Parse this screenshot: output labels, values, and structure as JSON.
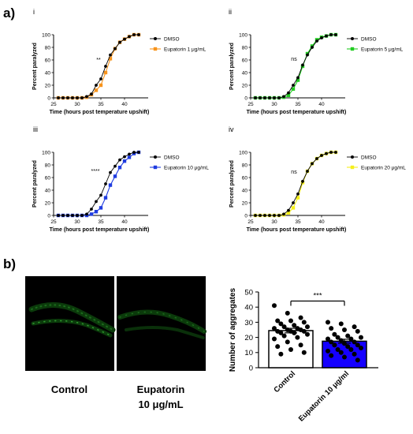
{
  "figure": {
    "panel_a_label": "a)",
    "panel_b_label": "b)",
    "images": [
      {
        "caption_line1": "Control",
        "caption_line2": ""
      },
      {
        "caption_line1": "Eupatorin",
        "caption_line2": "10 μg/mL"
      }
    ]
  },
  "chart_data": [
    {
      "type": "line",
      "panel": "i",
      "xlabel": "Time (hours post temperature upshift)",
      "ylabel": "Percent paralyzed",
      "xlim": [
        25,
        45
      ],
      "ylim": [
        0,
        100
      ],
      "xticks": [
        25,
        30,
        35,
        40
      ],
      "yticks": [
        0,
        20,
        40,
        60,
        80,
        100
      ],
      "annotation": "**",
      "legend_position": "right",
      "series": [
        {
          "name": "DMSO",
          "color": "#000000",
          "x": [
            26,
            27,
            28,
            29,
            30,
            31,
            32,
            33,
            34,
            35,
            36,
            37,
            38,
            39,
            40,
            41,
            42,
            43
          ],
          "y": [
            0,
            0,
            0,
            0,
            0,
            0,
            2,
            6,
            20,
            30,
            50,
            68,
            78,
            88,
            93,
            97,
            100,
            100
          ]
        },
        {
          "name": "Eupatorin 1 μg/mL",
          "color": "#f7941d",
          "x": [
            26,
            27,
            28,
            29,
            30,
            31,
            32,
            33,
            34,
            35,
            36,
            37,
            38,
            39,
            40,
            41,
            42,
            43
          ],
          "y": [
            0,
            0,
            0,
            0,
            0,
            0,
            1,
            5,
            12,
            20,
            40,
            62,
            78,
            88,
            93,
            97,
            100,
            100
          ]
        }
      ]
    },
    {
      "type": "line",
      "panel": "ii",
      "xlabel": "Time (hours post temperature upshift)",
      "ylabel": "Percent paralyzed",
      "xlim": [
        25,
        45
      ],
      "ylim": [
        0,
        100
      ],
      "xticks": [
        25,
        30,
        35,
        40
      ],
      "yticks": [
        0,
        20,
        40,
        60,
        80,
        100
      ],
      "annotation": "ns",
      "legend_position": "right",
      "series": [
        {
          "name": "DMSO",
          "color": "#000000",
          "x": [
            26,
            27,
            28,
            29,
            30,
            31,
            32,
            33,
            34,
            35,
            36,
            37,
            38,
            39,
            40,
            41,
            42,
            43
          ],
          "y": [
            0,
            0,
            0,
            0,
            0,
            0,
            2,
            8,
            20,
            32,
            52,
            68,
            80,
            90,
            95,
            98,
            100,
            100
          ]
        },
        {
          "name": "Eupatorin 5 μg/mL",
          "color": "#22cc22",
          "x": [
            26,
            27,
            28,
            29,
            30,
            31,
            32,
            33,
            34,
            35,
            36,
            37,
            38,
            39,
            40,
            41,
            42,
            43
          ],
          "y": [
            0,
            0,
            0,
            0,
            0,
            0,
            1,
            4,
            14,
            28,
            50,
            70,
            82,
            92,
            96,
            98,
            100,
            100
          ]
        }
      ]
    },
    {
      "type": "line",
      "panel": "iii",
      "xlabel": "Time (hours post temperature upshift)",
      "ylabel": "Percent paralyzed",
      "xlim": [
        25,
        45
      ],
      "ylim": [
        0,
        100
      ],
      "xticks": [
        25,
        30,
        35,
        40
      ],
      "yticks": [
        0,
        20,
        40,
        60,
        80,
        100
      ],
      "annotation": "****",
      "legend_position": "right",
      "series": [
        {
          "name": "DMSO",
          "color": "#000000",
          "x": [
            26,
            27,
            28,
            29,
            30,
            31,
            32,
            33,
            34,
            35,
            36,
            37,
            38,
            39,
            40,
            41,
            42,
            43
          ],
          "y": [
            0,
            0,
            0,
            0,
            0,
            0,
            2,
            10,
            22,
            32,
            50,
            68,
            78,
            88,
            93,
            97,
            100,
            100
          ]
        },
        {
          "name": "Eupatorin 10 μg/mL",
          "color": "#1f3ce0",
          "x": [
            26,
            27,
            28,
            29,
            30,
            31,
            32,
            33,
            34,
            35,
            36,
            37,
            38,
            39,
            40,
            41,
            42,
            43
          ],
          "y": [
            0,
            0,
            0,
            0,
            0,
            0,
            0,
            2,
            6,
            12,
            28,
            48,
            62,
            76,
            86,
            92,
            98,
            100
          ]
        }
      ]
    },
    {
      "type": "line",
      "panel": "iv",
      "xlabel": "Time (hours post temperature upshift)",
      "ylabel": "Percent paralyzed",
      "xlim": [
        25,
        45
      ],
      "ylim": [
        0,
        100
      ],
      "xticks": [
        25,
        30,
        35,
        40
      ],
      "yticks": [
        0,
        20,
        40,
        60,
        80,
        100
      ],
      "annotation": "ns",
      "legend_position": "right",
      "series": [
        {
          "name": "DMSO",
          "color": "#000000",
          "x": [
            26,
            27,
            28,
            29,
            30,
            31,
            32,
            33,
            34,
            35,
            36,
            37,
            38,
            39,
            40,
            41,
            42,
            43
          ],
          "y": [
            0,
            0,
            0,
            0,
            0,
            0,
            2,
            8,
            20,
            34,
            54,
            70,
            82,
            90,
            95,
            98,
            100,
            100
          ]
        },
        {
          "name": "Eupatorin 20 μg/mL",
          "color": "#f5ef1a",
          "x": [
            26,
            27,
            28,
            29,
            30,
            31,
            32,
            33,
            34,
            35,
            36,
            37,
            38,
            39,
            40,
            41,
            42,
            43
          ],
          "y": [
            0,
            0,
            0,
            0,
            0,
            0,
            1,
            4,
            12,
            28,
            52,
            70,
            82,
            90,
            95,
            98,
            100,
            100
          ]
        }
      ]
    },
    {
      "type": "bar",
      "panel": "b",
      "ylabel": "Number of aggregates",
      "ylim": [
        0,
        50
      ],
      "yticks": [
        0,
        10,
        20,
        30,
        40,
        50
      ],
      "categories": [
        "Control",
        "Eupatorin 10 μg/ml"
      ],
      "values": [
        24.5,
        17.5
      ],
      "errors": [
        1.5,
        1.3
      ],
      "bar_colors": [
        "#ffffff",
        "#1500ff"
      ],
      "annotation": "***",
      "points": [
        [
          41,
          36,
          33,
          31,
          31,
          30,
          29,
          28,
          27,
          27,
          26,
          26,
          25,
          25,
          24,
          24,
          24,
          23,
          23,
          22,
          21,
          20,
          19,
          17,
          15,
          14,
          12,
          10,
          9
        ],
        [
          30,
          29,
          27,
          26,
          25,
          24,
          22,
          21,
          20,
          20,
          19,
          19,
          18,
          17,
          17,
          16,
          15,
          15,
          14,
          13,
          12,
          12,
          11,
          10,
          9,
          8,
          7,
          5,
          15
        ]
      ]
    }
  ]
}
